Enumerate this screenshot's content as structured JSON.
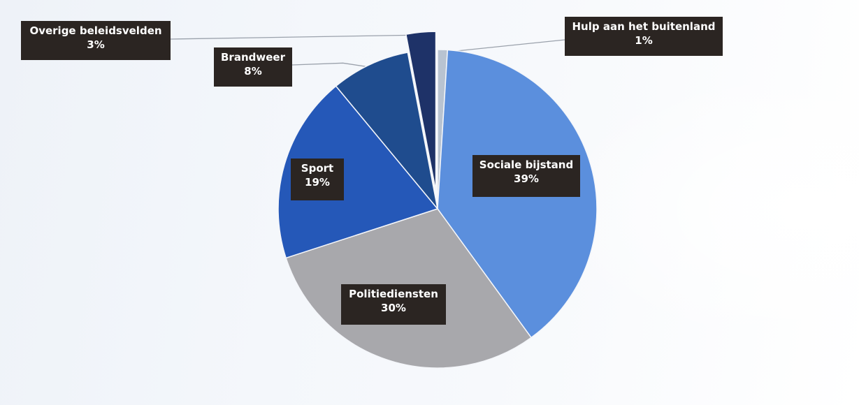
{
  "chart_data": {
    "type": "pie",
    "title": "",
    "slices": [
      {
        "label": "Hulp aan het buitenland",
        "value": 1,
        "value_label": "1%",
        "color": "#b8c3d1"
      },
      {
        "label": "Sociale bijstand",
        "value": 39,
        "value_label": "39%",
        "color": "#5b8fdd"
      },
      {
        "label": "Politiediensten",
        "value": 30,
        "value_label": "30%",
        "color": "#a8a8ac"
      },
      {
        "label": "Sport",
        "value": 19,
        "value_label": "19%",
        "color": "#2558b8"
      },
      {
        "label": "Brandweer",
        "value": 8,
        "value_label": "8%",
        "color": "#1f4c8e"
      },
      {
        "label": "Overige beleidsvelden",
        "value": 3,
        "value_label": "3%",
        "color": "#1e3268"
      }
    ],
    "exploded_slice": "Overige beleidsvelden",
    "legend": "none",
    "data_labels": "callout boxes with leader lines"
  }
}
